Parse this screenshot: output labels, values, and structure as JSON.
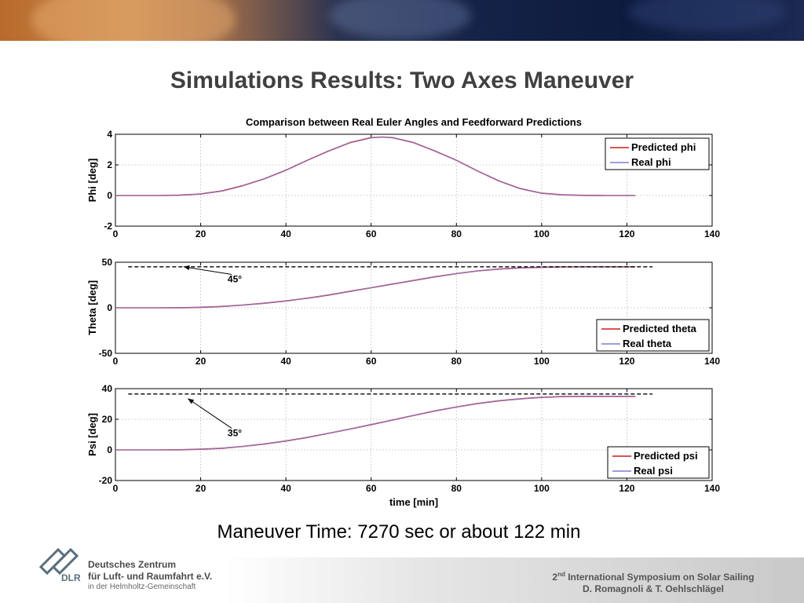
{
  "slide": {
    "title": "Simulations Results: Two Axes Maneuver",
    "caption": "Maneuver Time: 7270 sec or about 122 min"
  },
  "footer": {
    "org_line1": "Deutsches Zentrum",
    "org_line2": "für Luft- und Raumfahrt e.V.",
    "org_line3": "in der Helmholtz-Gemeinschaft",
    "logo_text": "DLR",
    "symposium_prefix": "2",
    "symposium_sup": "nd",
    "symposium_rest": " International Symposium on Solar Sailing",
    "authors": "D. Romagnoli & T. Oehlschlägel"
  },
  "colors": {
    "predicted": "#d01818",
    "real": "#7d7dd0",
    "reference": "#000000",
    "text": "#404040"
  },
  "chart_data": [
    {
      "type": "line",
      "title": "Comparison between Real Euler Angles and Feedforward Predictions",
      "xlabel": "",
      "ylabel": "Phi [deg]",
      "xlim": [
        0,
        140
      ],
      "ylim": [
        -2,
        4
      ],
      "xticks": [
        0,
        20,
        40,
        60,
        80,
        100,
        120,
        140
      ],
      "yticks": [
        -2,
        0,
        2,
        4
      ],
      "grid": true,
      "legend": "top-right",
      "series": [
        {
          "name": "Predicted phi",
          "x": [
            0,
            10,
            15,
            20,
            25,
            30,
            35,
            40,
            45,
            50,
            55,
            60,
            62.5,
            65,
            70,
            75,
            80,
            85,
            90,
            95,
            100,
            105,
            110,
            115,
            122
          ],
          "values": [
            0,
            0,
            0.02,
            0.1,
            0.3,
            0.65,
            1.1,
            1.65,
            2.3,
            2.9,
            3.45,
            3.78,
            3.82,
            3.78,
            3.45,
            2.9,
            2.3,
            1.6,
            0.95,
            0.45,
            0.15,
            0.04,
            0.01,
            0,
            0
          ]
        },
        {
          "name": "Real phi",
          "x": [
            0,
            10,
            15,
            20,
            25,
            30,
            35,
            40,
            45,
            50,
            55,
            60,
            62.5,
            65,
            70,
            75,
            80,
            85,
            90,
            95,
            100,
            105,
            110,
            115,
            122
          ],
          "values": [
            0,
            0,
            0.02,
            0.1,
            0.3,
            0.65,
            1.1,
            1.65,
            2.3,
            2.9,
            3.45,
            3.78,
            3.82,
            3.78,
            3.45,
            2.9,
            2.3,
            1.6,
            0.95,
            0.45,
            0.15,
            0.04,
            0.01,
            0,
            0
          ]
        }
      ],
      "annotations": []
    },
    {
      "type": "line",
      "title": "",
      "xlabel": "",
      "ylabel": "Theta [deg]",
      "xlim": [
        0,
        140
      ],
      "ylim": [
        -50,
        50
      ],
      "xticks": [
        0,
        20,
        40,
        60,
        80,
        100,
        120,
        140
      ],
      "yticks": [
        -50,
        0,
        50
      ],
      "grid": true,
      "legend": "bottom-right",
      "series": [
        {
          "name": "Predicted theta",
          "x": [
            0,
            10,
            15,
            20,
            25,
            30,
            35,
            40,
            45,
            50,
            55,
            60,
            65,
            70,
            75,
            80,
            85,
            90,
            95,
            100,
            105,
            110,
            115,
            122
          ],
          "values": [
            0,
            0,
            0.1,
            0.5,
            1.5,
            3,
            5,
            7.5,
            10.5,
            14,
            18,
            22,
            26,
            30,
            34,
            37.5,
            40.5,
            42.5,
            43.8,
            44.5,
            44.8,
            45,
            45,
            45
          ]
        },
        {
          "name": "Real theta",
          "x": [
            0,
            10,
            15,
            20,
            25,
            30,
            35,
            40,
            45,
            50,
            55,
            60,
            65,
            70,
            75,
            80,
            85,
            90,
            95,
            100,
            105,
            110,
            115,
            122
          ],
          "values": [
            0,
            0,
            0.1,
            0.5,
            1.5,
            3,
            5,
            7.5,
            10.5,
            14,
            18,
            22,
            26,
            30,
            34,
            37.5,
            40.5,
            42.5,
            43.8,
            44.5,
            44.8,
            45,
            45,
            45
          ]
        },
        {
          "x": [
            3,
            126
          ],
          "values": [
            45,
            45
          ],
          "style": "dashed"
        }
      ],
      "annotations": [
        {
          "text": "45°",
          "x": 28,
          "y": 28,
          "arrow_to": [
            16,
            45
          ]
        }
      ]
    },
    {
      "type": "line",
      "title": "",
      "xlabel": "time [min]",
      "ylabel": "Psi [deg]",
      "xlim": [
        0,
        140
      ],
      "ylim": [
        -20,
        40
      ],
      "xticks": [
        0,
        20,
        40,
        60,
        80,
        100,
        120,
        140
      ],
      "yticks": [
        -20,
        0,
        20,
        40
      ],
      "grid": true,
      "legend": "bottom-right",
      "series": [
        {
          "name": "Predicted psi",
          "x": [
            0,
            10,
            15,
            20,
            25,
            30,
            35,
            40,
            45,
            50,
            55,
            60,
            65,
            70,
            75,
            80,
            85,
            90,
            95,
            100,
            105,
            110,
            115,
            122
          ],
          "values": [
            0,
            0,
            0.1,
            0.4,
            1.1,
            2.3,
            3.9,
            5.8,
            8.1,
            10.8,
            13.6,
            16.5,
            19.5,
            22.5,
            25.5,
            28,
            30.3,
            32.1,
            33.4,
            34.3,
            34.8,
            35,
            35,
            35
          ]
        },
        {
          "name": "Real psi",
          "x": [
            0,
            10,
            15,
            20,
            25,
            30,
            35,
            40,
            45,
            50,
            55,
            60,
            65,
            70,
            75,
            80,
            85,
            90,
            95,
            100,
            105,
            110,
            115,
            122
          ],
          "values": [
            0,
            0,
            0.1,
            0.4,
            1.1,
            2.3,
            3.9,
            5.8,
            8.1,
            10.8,
            13.6,
            16.5,
            19.5,
            22.5,
            25.5,
            28,
            30.3,
            32.1,
            33.4,
            34.3,
            34.8,
            35,
            35,
            35
          ]
        },
        {
          "x": [
            3,
            126
          ],
          "values": [
            36.5,
            36.5
          ],
          "style": "dashed"
        }
      ],
      "annotations": [
        {
          "text": "35°",
          "x": 28,
          "y": 9,
          "arrow_to": [
            17,
            33.5
          ]
        }
      ]
    }
  ]
}
